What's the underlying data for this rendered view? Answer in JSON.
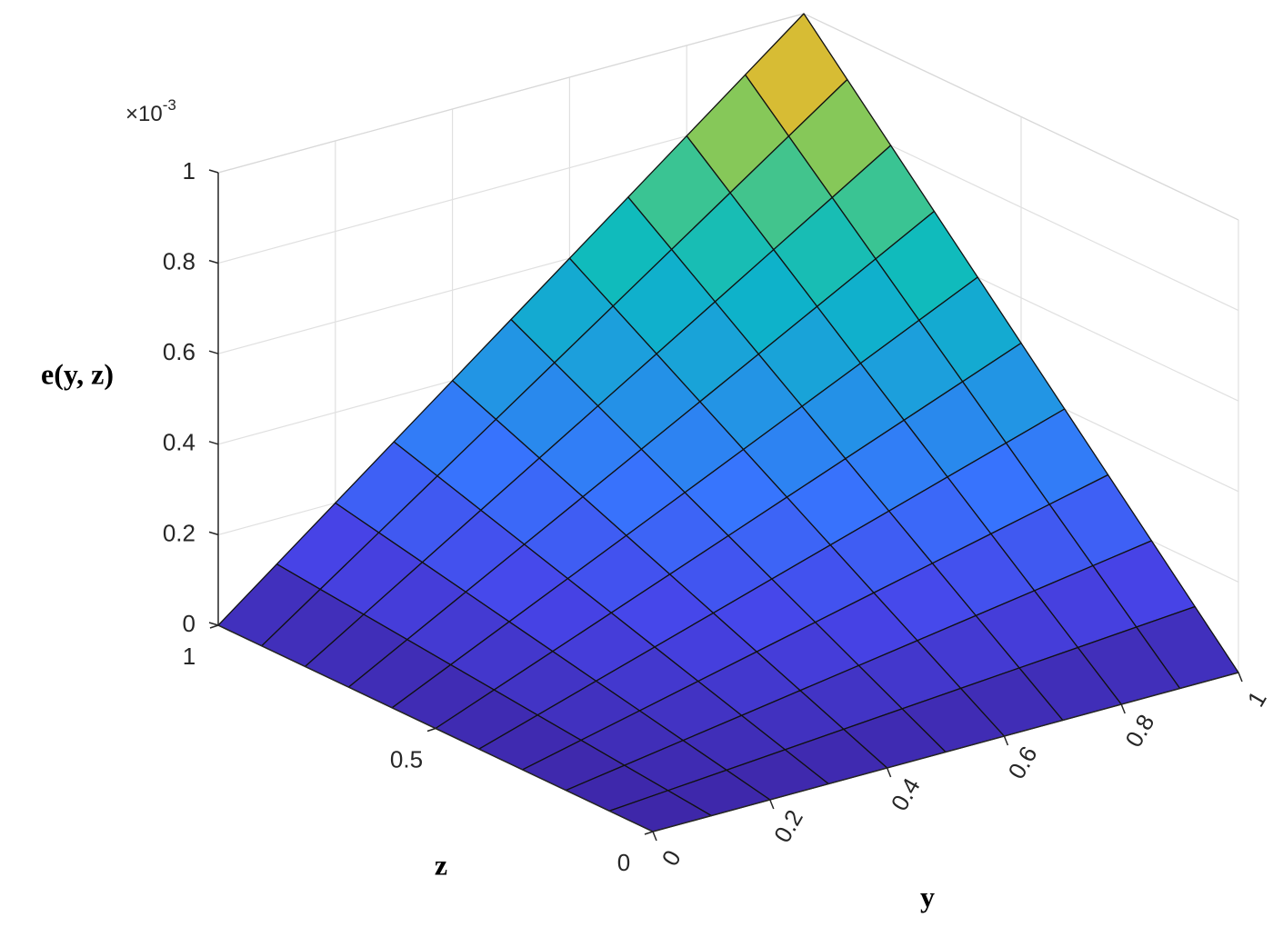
{
  "chart_data": {
    "type": "surface",
    "colormap": "parula",
    "xlabel": "y",
    "ylabel": "z",
    "zlabel": "e(y, z)",
    "zscale_label": "×10",
    "zscale_power": "-3",
    "x": [
      0,
      0.1,
      0.2,
      0.3,
      0.4,
      0.5,
      0.6,
      0.7,
      0.8,
      0.9,
      1
    ],
    "y": [
      0,
      0.1,
      0.2,
      0.3,
      0.4,
      0.5,
      0.6,
      0.7,
      0.8,
      0.9,
      1
    ],
    "values": [
      [
        0,
        0,
        0,
        0,
        0,
        0,
        0,
        0,
        0,
        0,
        0
      ],
      [
        0,
        0.01,
        0.02,
        0.03,
        0.04,
        0.05,
        0.06,
        0.07,
        0.08,
        0.09,
        0.1
      ],
      [
        0,
        0.02,
        0.04,
        0.06,
        0.08,
        0.1,
        0.12,
        0.14,
        0.16,
        0.18,
        0.2
      ],
      [
        0,
        0.03,
        0.06,
        0.09,
        0.12,
        0.15,
        0.18,
        0.21,
        0.24,
        0.27,
        0.3
      ],
      [
        0,
        0.04,
        0.08,
        0.12,
        0.16,
        0.2,
        0.24,
        0.28,
        0.32,
        0.36,
        0.4
      ],
      [
        0,
        0.05,
        0.1,
        0.15,
        0.2,
        0.25,
        0.3,
        0.35,
        0.4,
        0.45,
        0.5
      ],
      [
        0,
        0.06,
        0.12,
        0.18,
        0.24,
        0.3,
        0.36,
        0.42,
        0.48,
        0.54,
        0.6
      ],
      [
        0,
        0.07,
        0.14,
        0.21,
        0.28,
        0.35,
        0.42,
        0.49,
        0.56,
        0.63,
        0.7
      ],
      [
        0,
        0.08,
        0.16,
        0.24,
        0.32,
        0.4,
        0.48,
        0.56,
        0.64,
        0.72,
        0.8
      ],
      [
        0,
        0.09,
        0.18,
        0.27,
        0.36,
        0.45,
        0.54,
        0.63,
        0.72,
        0.81,
        0.9
      ],
      [
        0,
        0.1,
        0.2,
        0.3,
        0.4,
        0.5,
        0.6,
        0.7,
        0.8,
        0.9,
        1
      ]
    ],
    "xlim": [
      0,
      1
    ],
    "xticks": [
      0,
      0.2,
      0.4,
      0.6,
      0.8,
      1
    ],
    "ylim": [
      0,
      1
    ],
    "yticks": [
      0,
      0.5,
      1
    ],
    "zlim": [
      0,
      1
    ],
    "zticks": [
      0,
      0.2,
      0.4,
      0.6,
      0.8,
      1
    ],
    "grid": true
  }
}
